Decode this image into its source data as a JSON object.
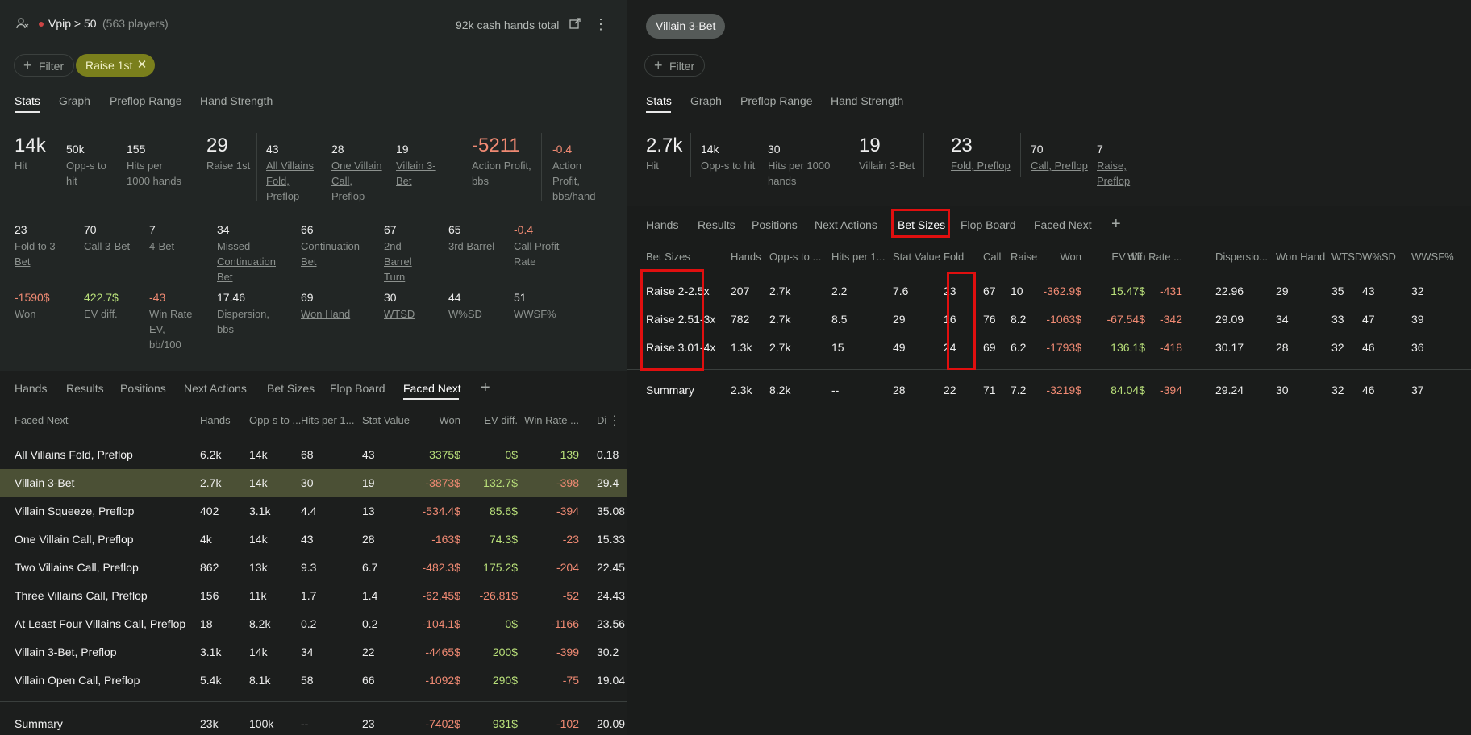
{
  "colors": {
    "accent_olive": "#7a7f1c",
    "selected_row": "#4b5035",
    "positive": "#b9e07a",
    "negative": "#f08a73",
    "highlight_box": "#e00f0f"
  },
  "left": {
    "header": {
      "title": "Vpip > 50",
      "players": "(563 players)",
      "hands_total": "92k cash hands total",
      "icons": [
        "player-group-icon",
        "export-icon",
        "more-vertical-icon"
      ]
    },
    "filter_label": "Filter",
    "active_filter": "Raise 1st",
    "view_tabs": [
      "Stats",
      "Graph",
      "Preflop Range",
      "Hand Strength"
    ],
    "stats_row1": [
      {
        "value": "14k",
        "label": "Hit"
      },
      {
        "value": "50k",
        "label": "Opp-s to hit"
      },
      {
        "value": "155",
        "label": "Hits per 1000 hands"
      },
      {
        "value": "29",
        "label": "Raise 1st"
      },
      {
        "value": "43",
        "label": "All Villains Fold, Preflop"
      },
      {
        "value": "28",
        "label": "One Villain Call, Preflop"
      },
      {
        "value": "19",
        "label": "Villain 3-Bet"
      },
      {
        "value": "-5211",
        "label": "Action Profit, bbs"
      },
      {
        "value": "-0.4",
        "label": "Action Profit, bbs/hand"
      }
    ],
    "stats_row2": [
      {
        "value": "23",
        "label": "Fold to 3-Bet"
      },
      {
        "value": "70",
        "label": "Call 3-Bet"
      },
      {
        "value": "7",
        "label": "4-Bet"
      },
      {
        "value": "34",
        "label": "Missed Continuation Bet"
      },
      {
        "value": "66",
        "label": "Continuation Bet"
      },
      {
        "value": "67",
        "label": "2nd Barrel Turn"
      },
      {
        "value": "65",
        "label": "3rd Barrel"
      },
      {
        "value": "-0.4",
        "label": "Call Profit Rate"
      }
    ],
    "stats_row3": [
      {
        "value": "-1590$",
        "label": "Won"
      },
      {
        "value": "422.7$",
        "label": "EV diff."
      },
      {
        "value": "-43",
        "label": "Win Rate EV, bb/100"
      },
      {
        "value": "17.46",
        "label": "Dispersion, bbs"
      },
      {
        "value": "69",
        "label": "Won Hand"
      },
      {
        "value": "30",
        "label": "WTSD"
      },
      {
        "value": "44",
        "label": "W%SD"
      },
      {
        "value": "51",
        "label": "WWSF%"
      }
    ],
    "section_tabs": [
      "Hands",
      "Results",
      "Positions",
      "Next Actions",
      "Bet Sizes",
      "Flop Board",
      "Faced Next"
    ],
    "table": {
      "columns": [
        "Faced Next",
        "Hands",
        "Opp-s to ...",
        "Hits per 1...",
        "Stat Value",
        "Won",
        "EV diff.",
        "Win Rate ...",
        "Di"
      ],
      "rows": [
        [
          "All Villains Fold, Preflop",
          "6.2k",
          "14k",
          "68",
          "43",
          "3375$",
          "0$",
          "139",
          "0.18"
        ],
        [
          "Villain 3-Bet",
          "2.7k",
          "14k",
          "30",
          "19",
          "-3873$",
          "132.7$",
          "-398",
          "29.4"
        ],
        [
          "Villain Squeeze, Preflop",
          "402",
          "3.1k",
          "4.4",
          "13",
          "-534.4$",
          "85.6$",
          "-394",
          "35.08"
        ],
        [
          "One Villain Call, Preflop",
          "4k",
          "14k",
          "43",
          "28",
          "-163$",
          "74.3$",
          "-23",
          "15.33"
        ],
        [
          "Two Villains Call, Preflop",
          "862",
          "13k",
          "9.3",
          "6.7",
          "-482.3$",
          "175.2$",
          "-204",
          "22.45"
        ],
        [
          "Three Villains Call, Preflop",
          "156",
          "11k",
          "1.7",
          "1.4",
          "-62.45$",
          "-26.81$",
          "-52",
          "24.43"
        ],
        [
          "At Least Four Villains Call, Preflop",
          "18",
          "8.2k",
          "0.2",
          "0.2",
          "-104.1$",
          "0$",
          "-1166",
          "23.56"
        ],
        [
          "Villain 3-Bet, Preflop",
          "3.1k",
          "14k",
          "34",
          "22",
          "-4465$",
          "200$",
          "-399",
          "30.2"
        ],
        [
          "Villain Open Call, Preflop",
          "5.4k",
          "8.1k",
          "58",
          "66",
          "-1092$",
          "290$",
          "-75",
          "19.04"
        ]
      ],
      "summary": [
        "Summary",
        "23k",
        "100k",
        "--",
        "23",
        "-7402$",
        "931$",
        "-102",
        "20.09"
      ]
    }
  },
  "right": {
    "title": "Villain 3-Bet",
    "filter_label": "Filter",
    "view_tabs": [
      "Stats",
      "Graph",
      "Preflop Range",
      "Hand Strength"
    ],
    "stats": [
      {
        "value": "2.7k",
        "label": "Hit"
      },
      {
        "value": "14k",
        "label": "Opp-s to hit"
      },
      {
        "value": "30",
        "label": "Hits per 1000 hands"
      },
      {
        "value": "19",
        "label": "Villain 3-Bet"
      },
      {
        "value": "23",
        "label": "Fold, Preflop"
      },
      {
        "value": "70",
        "label": "Call, Preflop"
      },
      {
        "value": "7",
        "label": "Raise, Preflop"
      }
    ],
    "section_tabs": [
      "Hands",
      "Results",
      "Positions",
      "Next Actions",
      "Bet Sizes",
      "Flop Board",
      "Faced Next"
    ],
    "table": {
      "columns": [
        "Bet Sizes",
        "Hands",
        "Opp-s to ...",
        "Hits per 1...",
        "Stat Value",
        "Fold",
        "Call",
        "Raise",
        "Won",
        "EV diff.",
        "Win Rate ...",
        "Dispersio...",
        "Won Hand",
        "WTSD",
        "W%SD",
        "WWSF%"
      ],
      "rows": [
        [
          "Raise 2-2.5x",
          "207",
          "2.7k",
          "2.2",
          "7.6",
          "23",
          "67",
          "10",
          "-362.9$",
          "15.47$",
          "-431",
          "22.96",
          "29",
          "35",
          "43",
          "32"
        ],
        [
          "Raise 2.51-3x",
          "782",
          "2.7k",
          "8.5",
          "29",
          "16",
          "76",
          "8.2",
          "-1063$",
          "-67.54$",
          "-342",
          "29.09",
          "34",
          "33",
          "47",
          "39"
        ],
        [
          "Raise 3.01-4x",
          "1.3k",
          "2.7k",
          "15",
          "49",
          "24",
          "69",
          "6.2",
          "-1793$",
          "136.1$",
          "-418",
          "30.17",
          "28",
          "32",
          "46",
          "36"
        ]
      ],
      "summary": [
        "Summary",
        "2.3k",
        "8.2k",
        "--",
        "28",
        "22",
        "71",
        "7.2",
        "-3219$",
        "84.04$",
        "-394",
        "29.24",
        "30",
        "32",
        "46",
        "37"
      ]
    }
  }
}
